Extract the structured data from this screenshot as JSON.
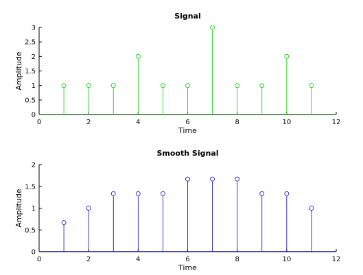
{
  "chart_data": [
    {
      "type": "stem",
      "title": "Signal",
      "xlabel": "Time",
      "ylabel": "Amplitude",
      "xlim": [
        0,
        12
      ],
      "ylim": [
        0,
        3
      ],
      "xticks": [
        0,
        2,
        4,
        6,
        8,
        10,
        12
      ],
      "yticks": [
        0,
        0.5,
        1,
        1.5,
        2,
        2.5,
        3
      ],
      "grid": false,
      "color": "#00cc00",
      "x": [
        1,
        2,
        3,
        4,
        5,
        6,
        7,
        8,
        9,
        10,
        11
      ],
      "y": [
        1,
        1,
        1,
        2,
        1,
        1,
        3,
        1,
        1,
        2,
        1
      ]
    },
    {
      "type": "stem",
      "title": "Smooth Signal",
      "xlabel": "Time",
      "ylabel": "Amplitude",
      "xlim": [
        0,
        12
      ],
      "ylim": [
        0,
        2
      ],
      "xticks": [
        0,
        2,
        4,
        6,
        8,
        10,
        12
      ],
      "yticks": [
        0,
        0.5,
        1,
        1.5,
        2
      ],
      "grid": false,
      "color": "#0000cc",
      "x": [
        1,
        2,
        3,
        4,
        5,
        6,
        7,
        8,
        9,
        10,
        11
      ],
      "y": [
        0.667,
        1,
        1.333,
        1.333,
        1.333,
        1.667,
        1.667,
        1.667,
        1.333,
        1.333,
        1
      ]
    }
  ]
}
